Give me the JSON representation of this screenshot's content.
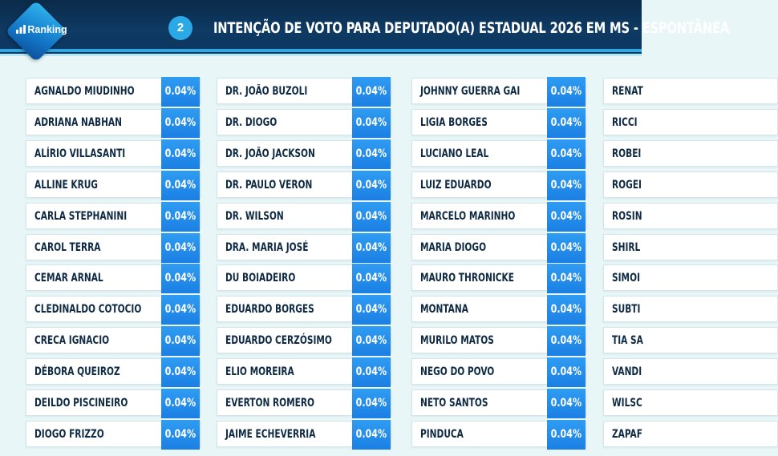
{
  "brand": {
    "name": "Ranking"
  },
  "header": {
    "slide_number": "2",
    "title": "INTENÇÃO DE VOTO PARA DEPUTADO(A) ESTADUAL 2026 EM MS - ESPONTÂNEA"
  },
  "columns": [
    [
      {
        "name": "AGNALDO MIUDINHO",
        "pct": "0.04%"
      },
      {
        "name": "ADRIANA NABHAN",
        "pct": "0.04%"
      },
      {
        "name": "ALÍRIO VILLASANTI",
        "pct": "0.04%"
      },
      {
        "name": "ALLINE KRUG",
        "pct": "0.04%"
      },
      {
        "name": "CARLA STEPHANINI",
        "pct": "0.04%"
      },
      {
        "name": "CAROL TERRA",
        "pct": "0.04%"
      },
      {
        "name": "CEMAR ARNAL",
        "pct": "0.04%"
      },
      {
        "name": "CLEDINALDO COTOCIO",
        "pct": "0.04%"
      },
      {
        "name": "CRECA IGNACIO",
        "pct": "0.04%"
      },
      {
        "name": "DÉBORA QUEIROZ",
        "pct": "0.04%"
      },
      {
        "name": "DEILDO PISCINEIRO",
        "pct": "0.04%"
      },
      {
        "name": "DIOGO FRIZZO",
        "pct": "0.04%"
      }
    ],
    [
      {
        "name": "DR. JOÃO BUZOLI",
        "pct": "0.04%"
      },
      {
        "name": "DR. DIOGO",
        "pct": "0.04%"
      },
      {
        "name": "DR. JOÃO JACKSON",
        "pct": "0.04%"
      },
      {
        "name": "DR. PAULO VERON",
        "pct": "0.04%"
      },
      {
        "name": "DR. WILSON",
        "pct": "0.04%"
      },
      {
        "name": "DRA. MARIA JOSÉ",
        "pct": "0.04%"
      },
      {
        "name": "DU BOIADEIRO",
        "pct": "0.04%"
      },
      {
        "name": "EDUARDO BORGES",
        "pct": "0.04%"
      },
      {
        "name": "EDUARDO CERZÓSIMO",
        "pct": "0.04%"
      },
      {
        "name": "ELIO MOREIRA",
        "pct": "0.04%"
      },
      {
        "name": "EVERTON ROMERO",
        "pct": "0.04%"
      },
      {
        "name": "JAIME ECHEVERRIA",
        "pct": "0.04%"
      }
    ],
    [
      {
        "name": "JOHNNY GUERRA GAI",
        "pct": "0.04%"
      },
      {
        "name": "LIGIA BORGES",
        "pct": "0.04%"
      },
      {
        "name": "LUCIANO LEAL",
        "pct": "0.04%"
      },
      {
        "name": "LUIZ EDUARDO",
        "pct": "0.04%"
      },
      {
        "name": "MARCELO MARINHO",
        "pct": "0.04%"
      },
      {
        "name": "MARIA DIOGO",
        "pct": "0.04%"
      },
      {
        "name": "MAURO THRONICKE",
        "pct": "0.04%"
      },
      {
        "name": "MONTANA",
        "pct": "0.04%"
      },
      {
        "name": "MURILO MATOS",
        "pct": "0.04%"
      },
      {
        "name": "NEGO DO POVO",
        "pct": "0.04%"
      },
      {
        "name": "NETO SANTOS",
        "pct": "0.04%"
      },
      {
        "name": "PINDUCA",
        "pct": "0.04%"
      }
    ],
    [
      {
        "name": "RENAT",
        "pct": ""
      },
      {
        "name": "RICCI",
        "pct": ""
      },
      {
        "name": "ROBEI",
        "pct": ""
      },
      {
        "name": "ROGEI",
        "pct": ""
      },
      {
        "name": "ROSIN",
        "pct": ""
      },
      {
        "name": "SHIRL",
        "pct": ""
      },
      {
        "name": "SIMOI",
        "pct": ""
      },
      {
        "name": "SUBTI",
        "pct": ""
      },
      {
        "name": "TIA SA",
        "pct": ""
      },
      {
        "name": "VANDI",
        "pct": ""
      },
      {
        "name": "WILSC",
        "pct": ""
      },
      {
        "name": "ZAPAF",
        "pct": ""
      }
    ]
  ]
}
